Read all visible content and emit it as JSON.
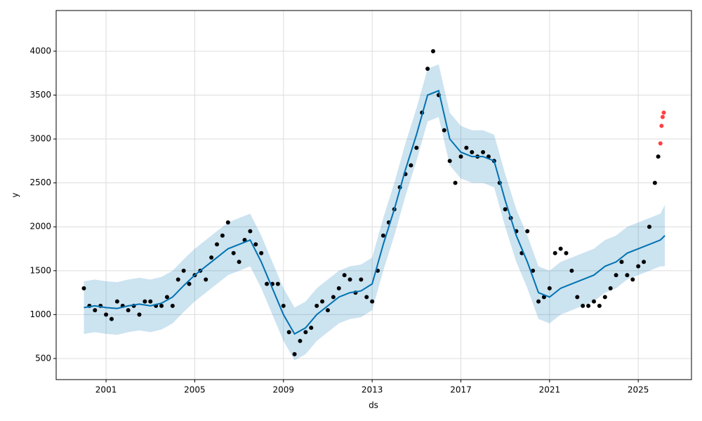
{
  "chart_data": {
    "type": "forecast",
    "x_label": "ds",
    "y_label": "y",
    "xlim": [
      1998.75,
      2027.4
    ],
    "ylim": [
      260,
      4463
    ],
    "xticks": [
      2001,
      2005,
      2009,
      2013,
      2017,
      2021,
      2025
    ],
    "yticks": [
      500,
      1000,
      1500,
      2000,
      2500,
      3000,
      3500,
      4000
    ],
    "grid": true,
    "observed": {
      "color": "#000000",
      "x": [
        2000,
        2000.25,
        2000.5,
        2000.75,
        2001,
        2001.25,
        2001.5,
        2001.75,
        2002,
        2002.25,
        2002.5,
        2002.75,
        2003,
        2003.25,
        2003.5,
        2003.75,
        2004,
        2004.25,
        2004.5,
        2004.75,
        2005,
        2005.25,
        2005.5,
        2005.75,
        2006,
        2006.25,
        2006.5,
        2006.75,
        2007,
        2007.25,
        2007.5,
        2007.75,
        2008,
        2008.25,
        2008.5,
        2008.75,
        2009,
        2009.25,
        2009.5,
        2009.75,
        2010,
        2010.25,
        2010.5,
        2010.75,
        2011,
        2011.25,
        2011.5,
        2011.75,
        2012,
        2012.25,
        2012.5,
        2012.75,
        2013,
        2013.25,
        2013.5,
        2013.75,
        2014,
        2014.25,
        2014.5,
        2014.75,
        2015,
        2015.25,
        2015.5,
        2015.75,
        2016,
        2016.25,
        2016.5,
        2016.75,
        2017,
        2017.25,
        2017.5,
        2017.75,
        2018,
        2018.25,
        2018.5,
        2018.75,
        2019,
        2019.25,
        2019.5,
        2019.75,
        2020,
        2020.25,
        2020.5,
        2020.75,
        2021,
        2021.25,
        2021.5,
        2021.75,
        2022,
        2022.25,
        2022.5,
        2022.75,
        2023,
        2023.25,
        2023.5,
        2023.75,
        2024,
        2024.25,
        2024.5,
        2024.75,
        2025,
        2025.25,
        2025.5,
        2025.75,
        2025.9
      ],
      "values": [
        1300,
        1100,
        1050,
        1100,
        1000,
        950,
        1150,
        1100,
        1050,
        1100,
        1000,
        1150,
        1150,
        1100,
        1100,
        1200,
        1100,
        1400,
        1500,
        1350,
        1450,
        1500,
        1400,
        1650,
        1800,
        1900,
        2050,
        1700,
        1600,
        1850,
        1950,
        1800,
        1700,
        1350,
        1350,
        1350,
        1100,
        800,
        550,
        700,
        800,
        850,
        1100,
        1150,
        1050,
        1200,
        1300,
        1450,
        1400,
        1250,
        1400,
        1200,
        1150,
        1500,
        1900,
        2050,
        2200,
        2450,
        2600,
        2700,
        2900,
        3300,
        3800,
        4000,
        3500,
        3100,
        2750,
        2500,
        2800,
        2900,
        2850,
        2800,
        2850,
        2800,
        2750,
        2500,
        2200,
        2100,
        1950,
        1700,
        1950,
        1500,
        1150,
        1200,
        1300,
        1700,
        1750,
        1700,
        1500,
        1200,
        1100,
        1100,
        1150,
        1100,
        1200,
        1300,
        1450,
        1600,
        1450,
        1400,
        1550,
        1600,
        2000,
        2500,
        2800
      ]
    },
    "recent": {
      "color": "#ff0000",
      "x": [
        2026.0,
        2026.05,
        2026.1,
        2026.15
      ],
      "values": [
        2950,
        3150,
        3250,
        3300
      ]
    },
    "forecast": {
      "color": "#0072b2",
      "x": [
        2000,
        2000.5,
        2001,
        2001.5,
        2002,
        2002.5,
        2003,
        2003.5,
        2004,
        2004.5,
        2005,
        2005.5,
        2006,
        2006.5,
        2007,
        2007.5,
        2008,
        2008.5,
        2009,
        2009.5,
        2010,
        2010.5,
        2011,
        2011.5,
        2012,
        2012.5,
        2013,
        2013.5,
        2014,
        2014.5,
        2015,
        2015.5,
        2016,
        2016.5,
        2017,
        2017.5,
        2018,
        2018.5,
        2019,
        2019.5,
        2020,
        2020.5,
        2021,
        2021.5,
        2022,
        2022.5,
        2023,
        2023.5,
        2024,
        2024.5,
        2025,
        2025.5,
        2026,
        2026.2
      ],
      "yhat": [
        1080,
        1100,
        1080,
        1070,
        1100,
        1120,
        1100,
        1130,
        1200,
        1330,
        1450,
        1550,
        1650,
        1750,
        1800,
        1850,
        1600,
        1300,
        1000,
        780,
        850,
        1000,
        1100,
        1200,
        1250,
        1270,
        1350,
        1800,
        2200,
        2650,
        3050,
        3500,
        3550,
        3000,
        2850,
        2800,
        2800,
        2750,
        2300,
        1900,
        1600,
        1250,
        1200,
        1300,
        1350,
        1400,
        1450,
        1550,
        1600,
        1700,
        1750,
        1800,
        1850,
        1900
      ],
      "upper": [
        1380,
        1400,
        1380,
        1370,
        1400,
        1420,
        1400,
        1430,
        1500,
        1630,
        1750,
        1850,
        1950,
        2050,
        2100,
        2150,
        1900,
        1600,
        1300,
        1080,
        1150,
        1300,
        1400,
        1500,
        1550,
        1570,
        1650,
        2100,
        2500,
        2950,
        3350,
        3800,
        3850,
        3300,
        3150,
        3100,
        3100,
        3050,
        2600,
        2200,
        1900,
        1550,
        1500,
        1600,
        1650,
        1700,
        1750,
        1850,
        1900,
        2000,
        2050,
        2100,
        2150,
        2250
      ],
      "lower": [
        780,
        800,
        780,
        770,
        800,
        820,
        800,
        830,
        900,
        1030,
        1150,
        1250,
        1350,
        1450,
        1500,
        1550,
        1300,
        1000,
        700,
        480,
        550,
        700,
        800,
        900,
        950,
        970,
        1050,
        1500,
        1900,
        2350,
        2750,
        3200,
        3250,
        2700,
        2550,
        2500,
        2500,
        2450,
        2000,
        1600,
        1300,
        950,
        900,
        1000,
        1050,
        1100,
        1150,
        1250,
        1300,
        1400,
        1450,
        1500,
        1550,
        1550
      ]
    }
  }
}
